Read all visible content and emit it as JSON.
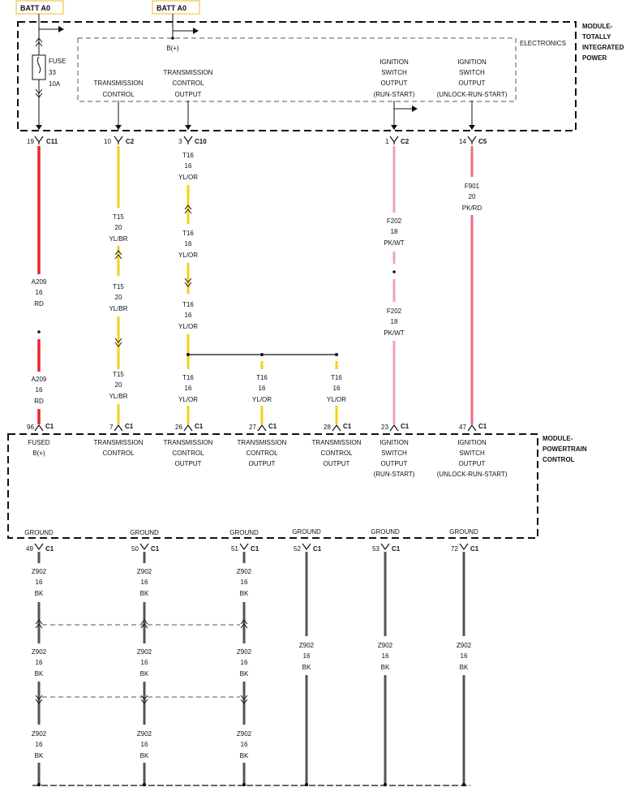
{
  "batt": {
    "left": "BATT A0",
    "right": "BATT A0"
  },
  "tipm": {
    "title": [
      "MODULE-",
      "TOTALLY",
      "INTEGRATED",
      "POWER"
    ],
    "electronics": "ELECTRONICS",
    "bplus": "B(+)",
    "fuse": {
      "name": "FUSE",
      "number": "33",
      "rating": "10A"
    },
    "functions": {
      "trans_ctrl": [
        "TRANSMISSION",
        "CONTROL"
      ],
      "trans_out": [
        "TRANSMISSION",
        "CONTROL",
        "OUTPUT"
      ],
      "ign_run": [
        "IGNITION",
        "SWITCH",
        "OUTPUT",
        "(RUN-START)"
      ],
      "ign_unlock": [
        "IGNITION",
        "SWITCH",
        "OUTPUT",
        "(UNLOCK-RUN-START)"
      ]
    },
    "pins": {
      "p1": {
        "pin": "19",
        "conn": "C11"
      },
      "p2": {
        "pin": "10",
        "conn": "C2"
      },
      "p3": {
        "pin": "3",
        "conn": "C10"
      },
      "p4": {
        "pin": "1",
        "conn": "C2"
      },
      "p5": {
        "pin": "14",
        "conn": "C5"
      }
    }
  },
  "wires": {
    "a209": {
      "circuit": "A209",
      "gauge": "16",
      "color": "RD"
    },
    "t15": {
      "circuit": "T15",
      "gauge": "20",
      "color": "YL/BR"
    },
    "t16": {
      "circuit": "T16",
      "gauge": "16",
      "color": "YL/OR"
    },
    "f202": {
      "circuit": "F202",
      "gauge": "18",
      "color": "PK/WT"
    },
    "f901": {
      "circuit": "F901",
      "gauge": "20",
      "color": "PK/RD"
    },
    "z902": {
      "circuit": "Z902",
      "gauge": "16",
      "color": "BK"
    }
  },
  "pcm": {
    "title": [
      "MODULE-",
      "POWERTRAIN",
      "CONTROL"
    ],
    "functions": {
      "fused": [
        "FUSED",
        "B(+)"
      ],
      "trans_ctrl": [
        "TRANSMISSION",
        "CONTROL"
      ],
      "trans_out": [
        "TRANSMISSION",
        "CONTROL",
        "OUTPUT"
      ],
      "ign_run": [
        "IGNITION",
        "SWITCH",
        "OUTPUT",
        "(RUN-START)"
      ],
      "ign_unlock": [
        "IGNITION",
        "SWITCH",
        "OUTPUT",
        "(UNLOCK-RUN-START)"
      ]
    },
    "ground": "GROUND",
    "pins": {
      "p96": {
        "pin": "96",
        "conn": "C1"
      },
      "p7": {
        "pin": "7",
        "conn": "C1"
      },
      "p26": {
        "pin": "26",
        "conn": "C1"
      },
      "p27": {
        "pin": "27",
        "conn": "C1"
      },
      "p28": {
        "pin": "28",
        "conn": "C1"
      },
      "p23": {
        "pin": "23",
        "conn": "C1"
      },
      "p47": {
        "pin": "47",
        "conn": "C1"
      },
      "g49": {
        "pin": "49",
        "conn": "C1"
      },
      "g50": {
        "pin": "50",
        "conn": "C1"
      },
      "g51": {
        "pin": "51",
        "conn": "C1"
      },
      "g52": {
        "pin": "52",
        "conn": "C1"
      },
      "g53": {
        "pin": "53",
        "conn": "C1"
      },
      "g72": {
        "pin": "72",
        "conn": "C1"
      }
    }
  },
  "colors": {
    "red": "#e8262d",
    "yellow": "#f2d21a",
    "pink": "#f3a3b4",
    "pink_red": "#ee6a7f",
    "black_wire": "#555555",
    "batt_border": "#f0c64a"
  }
}
